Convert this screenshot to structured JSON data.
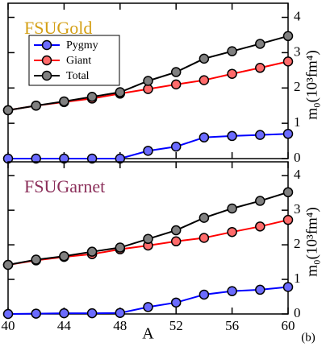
{
  "chart_data": [
    {
      "type": "line",
      "title": "FSUGold",
      "title_color": "#d4a017",
      "y_label": "m₀(10³fm⁴)",
      "x": [
        40,
        42,
        44,
        46,
        48,
        50,
        52,
        54,
        56,
        58,
        60
      ],
      "xlim": [
        40,
        60
      ],
      "xticks": [
        40,
        44,
        48,
        52,
        56,
        60
      ],
      "ylim": [
        0,
        4.4
      ],
      "yticks": [
        0,
        1,
        2,
        3,
        4
      ],
      "legend": "upper left",
      "series": [
        {
          "name": "Pygmy",
          "color": "#0000ff",
          "marker_color": "#6b6bff",
          "values": [
            0,
            0,
            0,
            0,
            0,
            0.22,
            0.34,
            0.6,
            0.64,
            0.67,
            0.7
          ]
        },
        {
          "name": "Giant",
          "color": "#ff0000",
          "marker_color": "#ff6b6b",
          "values": [
            1.37,
            1.5,
            1.6,
            1.7,
            1.84,
            1.97,
            2.1,
            2.22,
            2.4,
            2.57,
            2.75
          ]
        },
        {
          "name": "Total",
          "color": "#000000",
          "marker_color": "#808080",
          "values": [
            1.37,
            1.5,
            1.62,
            1.75,
            1.88,
            2.2,
            2.45,
            2.83,
            3.04,
            3.25,
            3.47
          ]
        }
      ]
    },
    {
      "type": "line",
      "title": "FSUGarnet",
      "title_color": "#8b2f5a",
      "y_label": "m₀(10³fm⁴)",
      "x_label": "A",
      "annotation": "(b)",
      "x": [
        40,
        42,
        44,
        46,
        48,
        50,
        52,
        54,
        56,
        58,
        60
      ],
      "xlim": [
        40,
        60
      ],
      "xticks": [
        40,
        44,
        48,
        52,
        56,
        60
      ],
      "ylim": [
        0,
        4.4
      ],
      "yticks": [
        0,
        1,
        2,
        3,
        4
      ],
      "series": [
        {
          "color": "#0000ff",
          "marker_color": "#6b6bff",
          "values": [
            0,
            0.01,
            0.02,
            0.02,
            0.03,
            0.2,
            0.33,
            0.56,
            0.66,
            0.7,
            0.78
          ]
        },
        {
          "color": "#ff0000",
          "marker_color": "#ff6b6b",
          "values": [
            1.42,
            1.55,
            1.65,
            1.73,
            1.87,
            1.98,
            2.1,
            2.2,
            2.37,
            2.53,
            2.72
          ]
        },
        {
          "color": "#000000",
          "marker_color": "#808080",
          "values": [
            1.42,
            1.57,
            1.67,
            1.8,
            1.92,
            2.17,
            2.42,
            2.78,
            3.05,
            3.27,
            3.52
          ]
        }
      ]
    }
  ]
}
